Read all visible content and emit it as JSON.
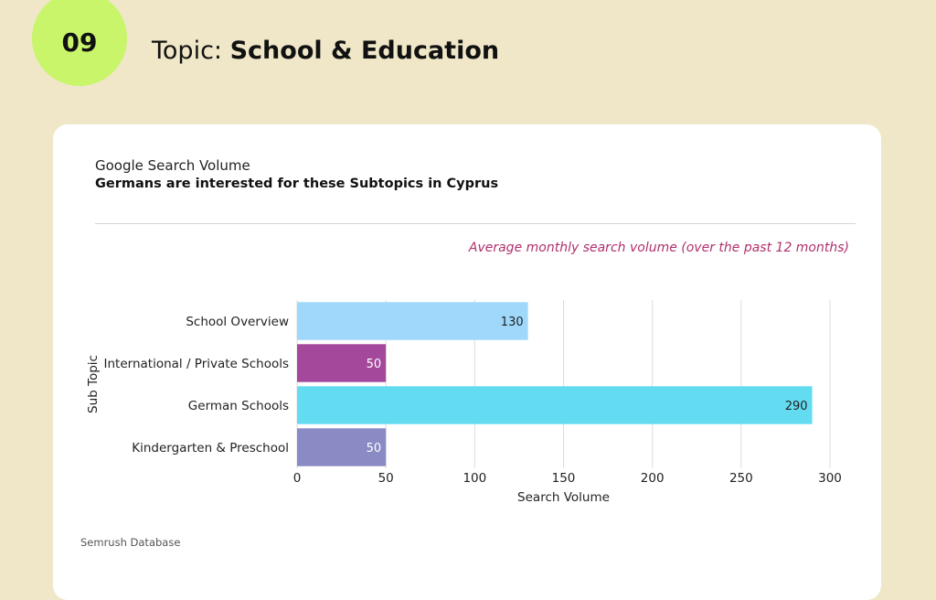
{
  "header": {
    "number": "09",
    "topic_label": "Topic: ",
    "topic_value": "School & Education"
  },
  "card": {
    "title": "Google Search Volume",
    "subtitle": "Germans are interested for these Subtopics in Cyprus",
    "annotation": "Average monthly search volume (over the past 12 months)",
    "source": "Semrush Database"
  },
  "colors": {
    "background": "#efe7c8",
    "badge": "#c8f56a",
    "annotation": "#b0306e",
    "grid": "#dddddd"
  },
  "chart_data": {
    "type": "bar",
    "orientation": "horizontal",
    "categories": [
      "School Overview",
      "International / Private Schools",
      "German Schools",
      "Kindergarten & Preschool"
    ],
    "values": [
      130,
      50,
      290,
      50
    ],
    "colors": [
      "#9fd8fb",
      "#a4489c",
      "#63dcf2",
      "#8a8ac4"
    ],
    "xlabel": "Search Volume",
    "ylabel": "Sub Topic",
    "xlim": [
      0,
      300
    ],
    "xticks": [
      0,
      50,
      100,
      150,
      200,
      250,
      300
    ],
    "grid": true,
    "data_labels": true
  }
}
